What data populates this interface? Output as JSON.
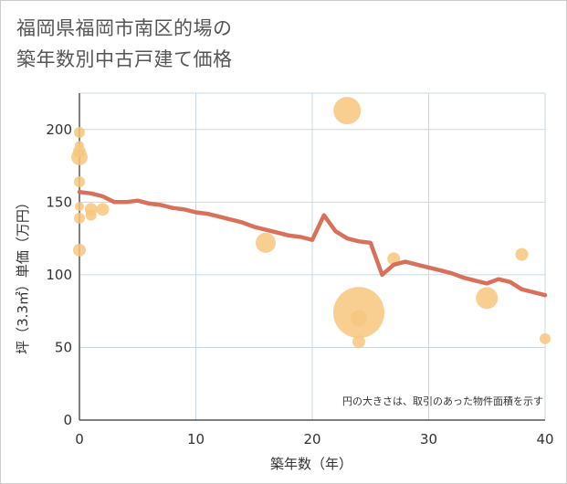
{
  "title_line1": "福岡県福岡市南区的場の",
  "title_line2": "築年数別中古戸建て価格",
  "chart_data": {
    "type": "scatter+line",
    "xlabel": "築年数（年）",
    "ylabel": "坪（3.3㎡）単価（万円）",
    "xlim": [
      0,
      40
    ],
    "ylim": [
      0,
      225
    ],
    "xticks": [
      0,
      10,
      20,
      30,
      40
    ],
    "yticks": [
      0,
      50,
      100,
      150,
      200
    ],
    "grid": true,
    "note": "円の大きさは、取引のあった物件面積を示す",
    "colors": {
      "line": "#d9715a",
      "bubble": "#f7c77e",
      "grid": "#c8d7e3",
      "axis": "#555555"
    },
    "line": {
      "x": [
        0,
        1,
        2,
        3,
        4,
        5,
        6,
        7,
        8,
        9,
        10,
        11,
        12,
        13,
        14,
        15,
        16,
        17,
        18,
        19,
        20,
        21,
        22,
        23,
        24,
        25,
        26,
        27,
        28,
        29,
        30,
        31,
        32,
        33,
        34,
        35,
        36,
        37,
        38,
        39,
        40
      ],
      "y": [
        157,
        156,
        154,
        150,
        150,
        151,
        149,
        148,
        146,
        145,
        143,
        142,
        140,
        138,
        136,
        133,
        131,
        129,
        127,
        126,
        124,
        141,
        130,
        125,
        123,
        122,
        100,
        107,
        109,
        107,
        105,
        103,
        101,
        98,
        96,
        94,
        97,
        95,
        90,
        88,
        86
      ]
    },
    "bubbles": [
      {
        "x": 0,
        "y": 198,
        "size": 6
      },
      {
        "x": 0,
        "y": 189,
        "size": 5
      },
      {
        "x": 0,
        "y": 185,
        "size": 7
      },
      {
        "x": 0,
        "y": 181,
        "size": 9
      },
      {
        "x": 0,
        "y": 164,
        "size": 6
      },
      {
        "x": 0,
        "y": 147,
        "size": 5
      },
      {
        "x": 0,
        "y": 139,
        "size": 6
      },
      {
        "x": 0,
        "y": 117,
        "size": 7
      },
      {
        "x": 1,
        "y": 145,
        "size": 7
      },
      {
        "x": 1,
        "y": 141,
        "size": 6
      },
      {
        "x": 2,
        "y": 145,
        "size": 7
      },
      {
        "x": 16,
        "y": 122,
        "size": 11
      },
      {
        "x": 23,
        "y": 213,
        "size": 15
      },
      {
        "x": 24,
        "y": 74,
        "size": 28
      },
      {
        "x": 24,
        "y": 70,
        "size": 9
      },
      {
        "x": 24,
        "y": 54,
        "size": 7
      },
      {
        "x": 27,
        "y": 111,
        "size": 7
      },
      {
        "x": 35,
        "y": 84,
        "size": 12
      },
      {
        "x": 38,
        "y": 114,
        "size": 7
      },
      {
        "x": 40,
        "y": 56,
        "size": 6
      }
    ]
  }
}
